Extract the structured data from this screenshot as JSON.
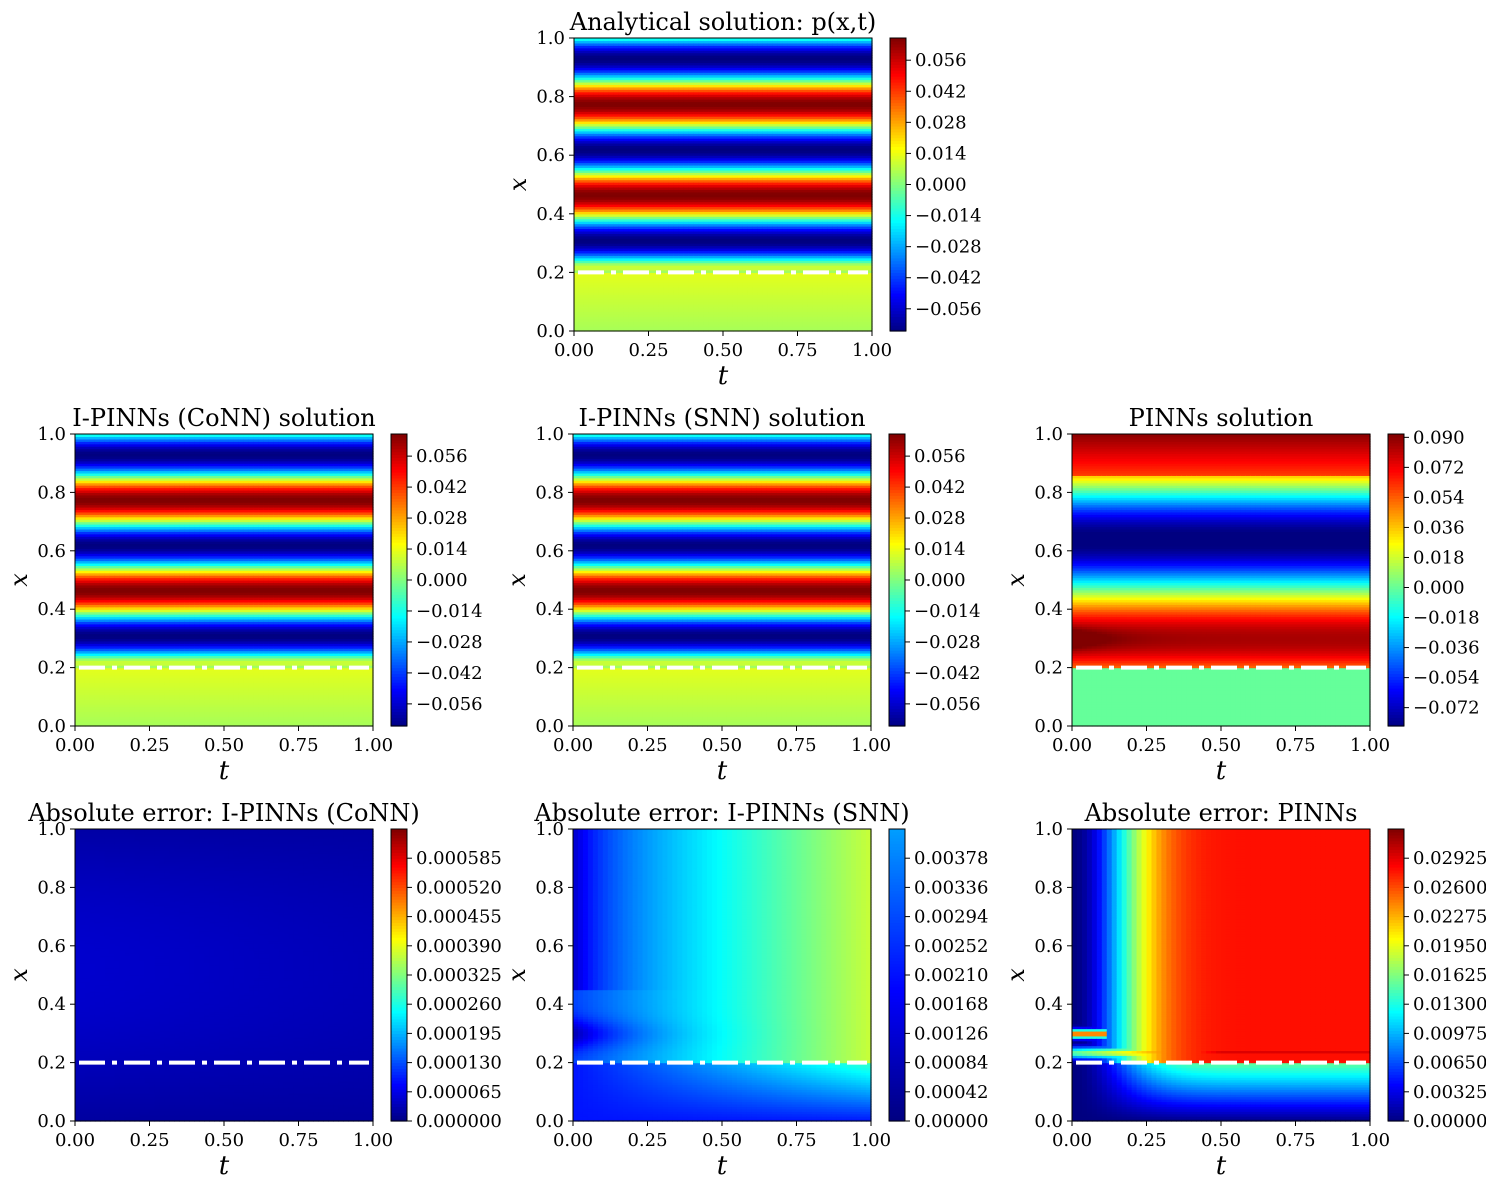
{
  "chart_data": [
    {
      "type": "heatmap",
      "title": "Analytical solution: p(x,t)",
      "xlabel": "t",
      "ylabel": "x",
      "xlim": [
        0,
        1
      ],
      "ylim": [
        0,
        1
      ],
      "xticks": [
        "0.00",
        "0.25",
        "0.50",
        "0.75",
        "1.00"
      ],
      "yticks": [
        "0.0",
        "0.2",
        "0.4",
        "0.6",
        "0.8",
        "1.0"
      ],
      "colormap": "jet",
      "color_range": [
        -0.066,
        0.066
      ],
      "colorbar_ticks": [
        "0.056",
        "0.042",
        "0.028",
        "0.014",
        "0.000",
        "−0.014",
        "−0.028",
        "−0.042",
        "−0.056"
      ],
      "colorbar_values": [
        0.056,
        0.042,
        0.028,
        0.014,
        0.0,
        -0.014,
        -0.028,
        -0.042,
        -0.056
      ],
      "field": "analytical",
      "reference_line": {
        "x": 0.2,
        "style": "dash-dot",
        "color": "#ffffff"
      }
    },
    {
      "type": "heatmap",
      "title": "I-PINNs (CoNN) solution",
      "xlabel": "t",
      "ylabel": "x",
      "xlim": [
        0,
        1
      ],
      "ylim": [
        0,
        1
      ],
      "xticks": [
        "0.00",
        "0.25",
        "0.50",
        "0.75",
        "1.00"
      ],
      "yticks": [
        "0.0",
        "0.2",
        "0.4",
        "0.6",
        "0.8",
        "1.0"
      ],
      "colormap": "jet",
      "color_range": [
        -0.066,
        0.066
      ],
      "colorbar_ticks": [
        "0.056",
        "0.042",
        "0.028",
        "0.014",
        "0.000",
        "−0.014",
        "−0.028",
        "−0.042",
        "−0.056"
      ],
      "colorbar_values": [
        0.056,
        0.042,
        0.028,
        0.014,
        0.0,
        -0.014,
        -0.028,
        -0.042,
        -0.056
      ],
      "field": "analytical",
      "reference_line": {
        "x": 0.2,
        "style": "dash-dot",
        "color": "#ffffff"
      }
    },
    {
      "type": "heatmap",
      "title": "I-PINNs (SNN) solution",
      "xlabel": "t",
      "ylabel": "x",
      "xlim": [
        0,
        1
      ],
      "ylim": [
        0,
        1
      ],
      "xticks": [
        "0.00",
        "0.25",
        "0.50",
        "0.75",
        "1.00"
      ],
      "yticks": [
        "0.0",
        "0.2",
        "0.4",
        "0.6",
        "0.8",
        "1.0"
      ],
      "colormap": "jet",
      "color_range": [
        -0.066,
        0.066
      ],
      "colorbar_ticks": [
        "0.056",
        "0.042",
        "0.028",
        "0.014",
        "0.000",
        "−0.014",
        "−0.028",
        "−0.042",
        "−0.056"
      ],
      "colorbar_values": [
        0.056,
        0.042,
        0.028,
        0.014,
        0.0,
        -0.014,
        -0.028,
        -0.042,
        -0.056
      ],
      "field": "analytical",
      "reference_line": {
        "x": 0.2,
        "style": "dash-dot",
        "color": "#ffffff"
      }
    },
    {
      "type": "heatmap",
      "title": "PINNs solution",
      "xlabel": "t",
      "ylabel": "x",
      "xlim": [
        0,
        1
      ],
      "ylim": [
        0,
        1
      ],
      "xticks": [
        "0.00",
        "0.25",
        "0.50",
        "0.75",
        "1.00"
      ],
      "yticks": [
        "0.0",
        "0.2",
        "0.4",
        "0.6",
        "0.8",
        "1.0"
      ],
      "colormap": "jet",
      "color_range": [
        -0.083,
        0.092
      ],
      "colorbar_ticks": [
        "0.090",
        "0.072",
        "0.054",
        "0.036",
        "0.018",
        "0.000",
        "−0.018",
        "−0.036",
        "−0.054",
        "−0.072"
      ],
      "colorbar_values": [
        0.09,
        0.072,
        0.054,
        0.036,
        0.018,
        0.0,
        -0.018,
        -0.036,
        -0.054,
        -0.072
      ],
      "field": "pinns",
      "reference_line": {
        "x": 0.2,
        "style": "dash-dot",
        "color": "#ffffff"
      }
    },
    {
      "type": "heatmap",
      "title": "Absolute error: I-PINNs (CoNN)",
      "xlabel": "t",
      "ylabel": "x",
      "xlim": [
        0,
        1
      ],
      "ylim": [
        0,
        1
      ],
      "xticks": [
        "0.00",
        "0.25",
        "0.50",
        "0.75",
        "1.00"
      ],
      "yticks": [
        "0.0",
        "0.2",
        "0.4",
        "0.6",
        "0.8",
        "1.0"
      ],
      "colormap": "jet",
      "color_range": [
        0,
        0.00065
      ],
      "colorbar_ticks": [
        "0.000585",
        "0.000520",
        "0.000455",
        "0.000390",
        "0.000325",
        "0.000260",
        "0.000195",
        "0.000130",
        "0.000065",
        "0.000000"
      ],
      "colorbar_values": [
        0.000585,
        0.00052,
        0.000455,
        0.00039,
        0.000325,
        0.00026,
        0.000195,
        0.00013,
        6.5e-05,
        0.0
      ],
      "field": "err_conn",
      "reference_line": {
        "x": 0.2,
        "style": "dash-dot",
        "color": "#ffffff"
      }
    },
    {
      "type": "heatmap",
      "title": "Absolute error: I-PINNs (SNN)",
      "xlabel": "t",
      "ylabel": "x",
      "xlim": [
        0,
        1
      ],
      "ylim": [
        0,
        1
      ],
      "xticks": [
        "0.00",
        "0.25",
        "0.50",
        "0.75",
        "1.00"
      ],
      "yticks": [
        "0.0",
        "0.2",
        "0.4",
        "0.6",
        "0.8",
        "1.0"
      ],
      "colormap": "jet",
      "color_range": [
        0,
        0.0042
      ],
      "colorbar_ticks": [
        "0.00378",
        "0.00336",
        "0.00294",
        "0.00252",
        "0.00210",
        "0.00168",
        "0.00126",
        "0.00084",
        "0.00042",
        "0.00000"
      ],
      "colorbar_values": [
        0.00378,
        0.00336,
        0.00294,
        0.00252,
        0.0021,
        0.00168,
        0.00126,
        0.00084,
        0.00042,
        0.0
      ],
      "colorbar_top_color": "#0000ff",
      "field": "err_snn",
      "reference_line": {
        "x": 0.2,
        "style": "dash-dot",
        "color": "#ffffff"
      }
    },
    {
      "type": "heatmap",
      "title": "Absolute error: PINNs",
      "xlabel": "t",
      "ylabel": "x",
      "xlim": [
        0,
        1
      ],
      "ylim": [
        0,
        1
      ],
      "xticks": [
        "0.00",
        "0.25",
        "0.50",
        "0.75",
        "1.00"
      ],
      "yticks": [
        "0.0",
        "0.2",
        "0.4",
        "0.6",
        "0.8",
        "1.0"
      ],
      "colormap": "jet",
      "color_range": [
        0,
        0.0325
      ],
      "colorbar_ticks": [
        "0.02925",
        "0.02600",
        "0.02275",
        "0.01950",
        "0.01625",
        "0.01300",
        "0.00975",
        "0.00650",
        "0.00325",
        "0.00000"
      ],
      "colorbar_values": [
        0.02925,
        0.026,
        0.02275,
        0.0195,
        0.01625,
        0.013,
        0.00975,
        0.0065,
        0.00325,
        0.0
      ],
      "field": "err_pinns",
      "reference_line": {
        "x": 0.2,
        "style": "dash-dot",
        "color": "#ffffff"
      }
    }
  ]
}
